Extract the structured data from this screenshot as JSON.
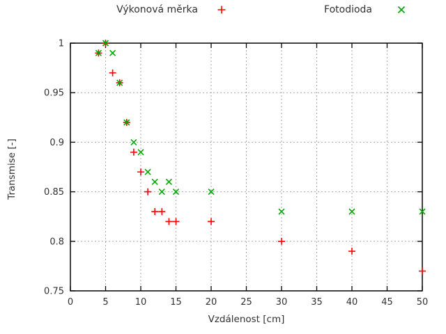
{
  "page": {
    "background": "#ffffff"
  },
  "chart_data": {
    "type": "scatter",
    "title": "",
    "xlabel": "Vzdálenost [cm]",
    "ylabel": "Transmise [-]",
    "xlim": [
      0,
      50
    ],
    "ylim": [
      0.75,
      1.0
    ],
    "xtick_values": [
      0,
      5,
      10,
      15,
      20,
      25,
      30,
      35,
      40,
      45,
      50
    ],
    "xtick_labels": [
      "0",
      "5",
      "10",
      "15",
      "20",
      "25",
      "30",
      "35",
      "40",
      "45",
      "50"
    ],
    "ytick_values": [
      0.75,
      0.8,
      0.85,
      0.9,
      0.95,
      1
    ],
    "ytick_labels": [
      "0.75",
      "0.8",
      "0.85",
      "0.9",
      "0.95",
      "1"
    ],
    "grid": true,
    "legend_position": "top-outside",
    "colors": {
      "axis": "#000000",
      "grid": "#a6a6a6",
      "text": "#303030",
      "series1": "#ff0000",
      "series2": "#00a800"
    },
    "series": [
      {
        "name": "Výkonová měrka",
        "marker": "plus",
        "color": "#ff0000",
        "points": [
          [
            4,
            0.99
          ],
          [
            5,
            1.0
          ],
          [
            6,
            0.97
          ],
          [
            7,
            0.96
          ],
          [
            8,
            0.92
          ],
          [
            9,
            0.89
          ],
          [
            10,
            0.87
          ],
          [
            11,
            0.85
          ],
          [
            12,
            0.83
          ],
          [
            13,
            0.83
          ],
          [
            14,
            0.82
          ],
          [
            15,
            0.82
          ],
          [
            20,
            0.82
          ],
          [
            30,
            0.8
          ],
          [
            40,
            0.79
          ],
          [
            50,
            0.77
          ]
        ]
      },
      {
        "name": "Fotodioda",
        "marker": "cross",
        "color": "#00a800",
        "points": [
          [
            4,
            0.99
          ],
          [
            5,
            1.0
          ],
          [
            6,
            0.99
          ],
          [
            7,
            0.96
          ],
          [
            8,
            0.92
          ],
          [
            9,
            0.9
          ],
          [
            10,
            0.89
          ],
          [
            11,
            0.87
          ],
          [
            12,
            0.86
          ],
          [
            13,
            0.85
          ],
          [
            14,
            0.86
          ],
          [
            15,
            0.85
          ],
          [
            20,
            0.85
          ],
          [
            30,
            0.83
          ],
          [
            40,
            0.83
          ],
          [
            50,
            0.83
          ]
        ]
      }
    ]
  }
}
